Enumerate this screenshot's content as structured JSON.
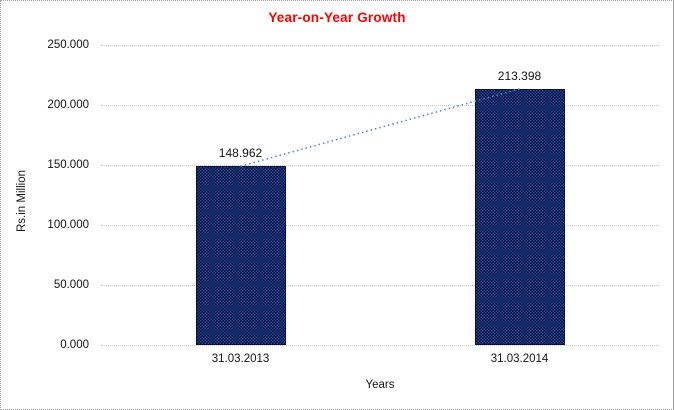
{
  "chart_data": {
    "type": "bar",
    "title": "Year-on-Year Growth",
    "xlabel": "Years",
    "ylabel": "Rs.in Million",
    "categories": [
      "31.03.2013",
      "31.03.2014"
    ],
    "values": [
      148.962,
      213.398
    ],
    "value_labels": [
      "148.962",
      "213.398"
    ],
    "ylim": [
      0,
      250
    ],
    "ytick_values": [
      0,
      50,
      100,
      150,
      200,
      250
    ],
    "ytick_labels": [
      "0.000",
      "50.000",
      "100.000",
      "150.000",
      "200.000",
      "250.000"
    ],
    "grid": "horizontal-dotted",
    "legend": "none",
    "trendline": {
      "style": "dotted",
      "connects": [
        148.962,
        213.398
      ]
    },
    "colors": {
      "title": "#FF0000",
      "bar_dark": "#0c1638",
      "bar_light": "#1c3e96",
      "bar_fallback": "#15296b",
      "trendline": "#4e86c8",
      "gridline": "#c9c9c9",
      "text": "#141414",
      "frame_border": "#9f9f9f"
    }
  }
}
